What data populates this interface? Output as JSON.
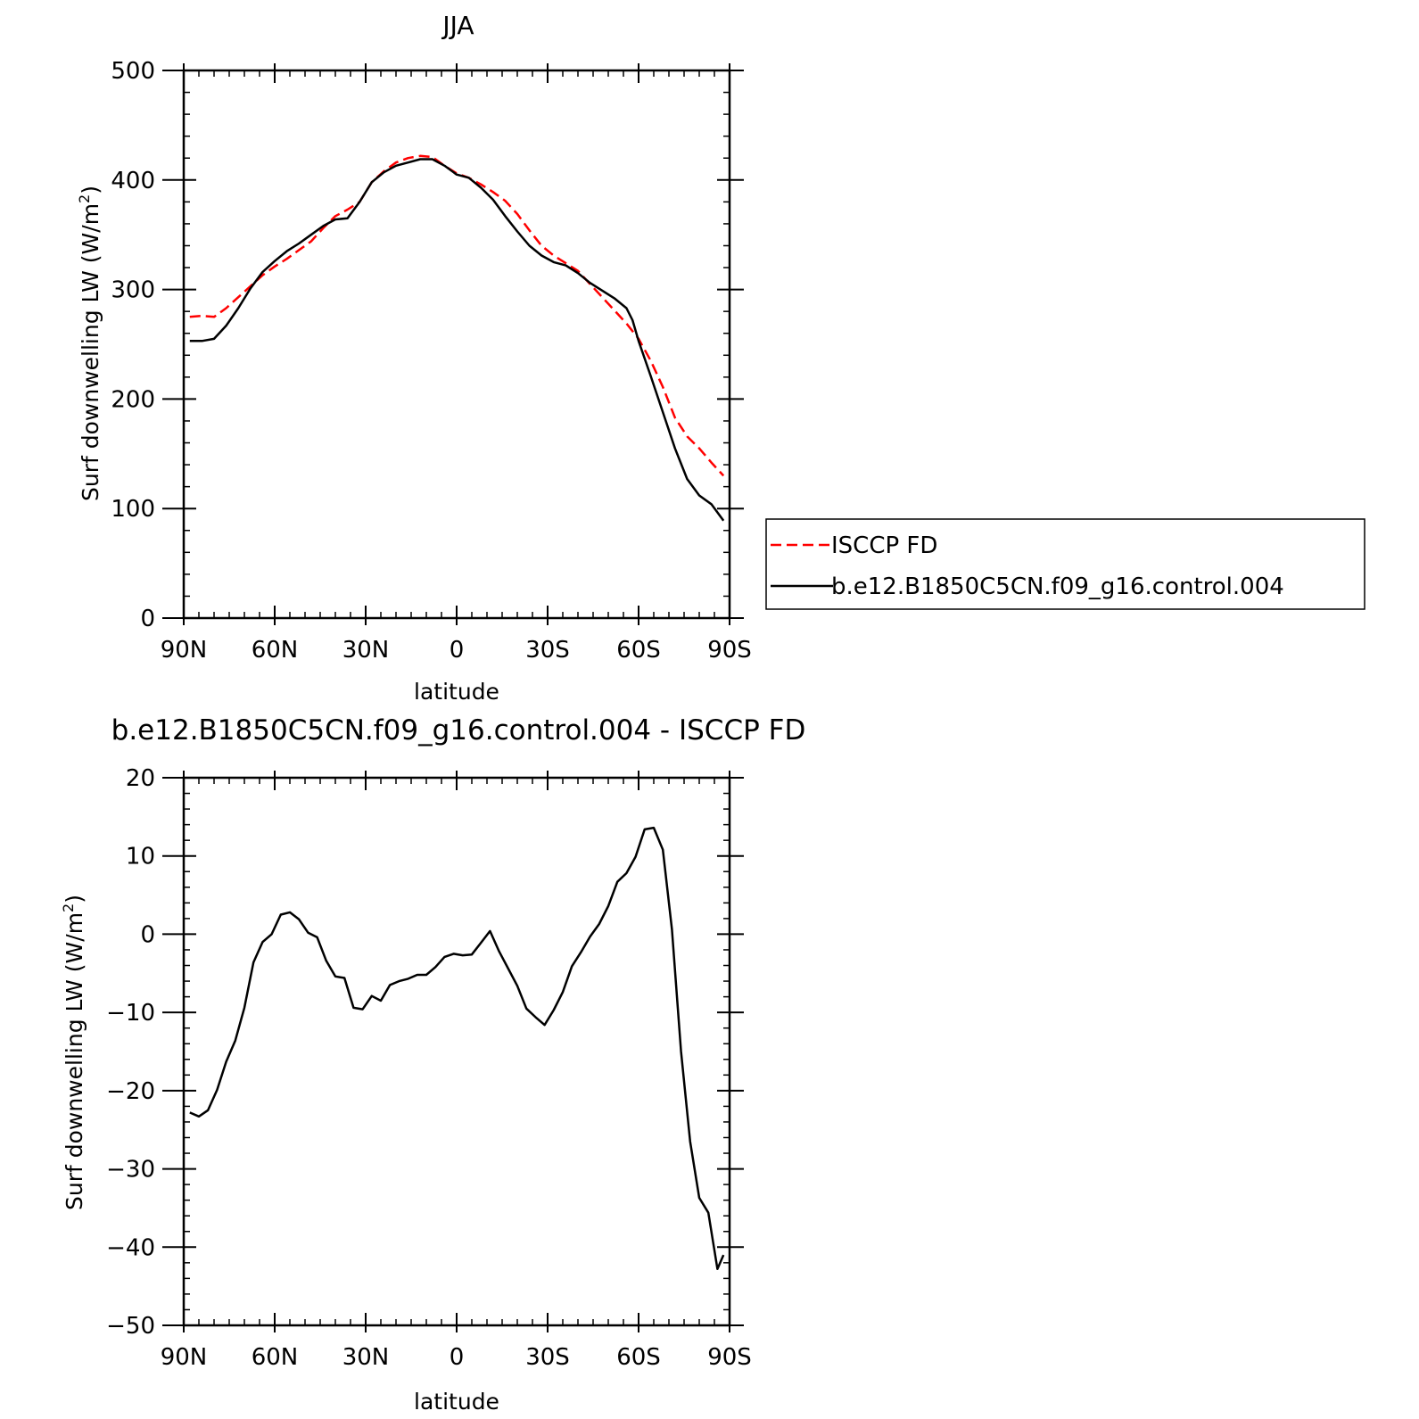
{
  "chart_data": [
    {
      "type": "line",
      "title": "JJA",
      "xlabel": "latitude",
      "ylabel": "Surf downwelling LW (W/m²)",
      "ylabel_main": "Surf downwelling LW (W/m",
      "ylabel_sup": "2",
      "ylabel_close": ")",
      "xlim": [
        90,
        -90
      ],
      "ylim": [
        0,
        500
      ],
      "x_ticks": [
        {
          "value": 90,
          "label": "90N"
        },
        {
          "value": 60,
          "label": "60N"
        },
        {
          "value": 30,
          "label": "30N"
        },
        {
          "value": 0,
          "label": "0"
        },
        {
          "value": -30,
          "label": "30S"
        },
        {
          "value": -60,
          "label": "60S"
        },
        {
          "value": -90,
          "label": "90S"
        }
      ],
      "y_ticks": [
        {
          "value": 0,
          "label": "0"
        },
        {
          "value": 100,
          "label": "100"
        },
        {
          "value": 200,
          "label": "200"
        },
        {
          "value": 300,
          "label": "300"
        },
        {
          "value": 400,
          "label": "400"
        },
        {
          "value": 500,
          "label": "500"
        }
      ],
      "legend_position": "right",
      "series": [
        {
          "name": "ISCCP FD",
          "color": "#ff0000",
          "dash": true,
          "x": [
            88,
            84,
            80,
            76,
            72,
            68,
            64,
            60,
            56,
            52,
            48,
            44,
            40,
            36,
            32,
            28,
            24,
            20,
            16,
            12,
            8,
            4,
            0,
            -4,
            -8,
            -12,
            -16,
            -20,
            -24,
            -28,
            -32,
            -36,
            -40,
            -44,
            -48,
            -52,
            -56,
            -60,
            -64,
            -68,
            -72,
            -76,
            -80,
            -84,
            -88
          ],
          "y": [
            275,
            276,
            275,
            283,
            293,
            303,
            313,
            321,
            328,
            336,
            344,
            356,
            367,
            373,
            380,
            398,
            408,
            416,
            420,
            422,
            421,
            413,
            406,
            402,
            396,
            389,
            381,
            369,
            354,
            340,
            331,
            324,
            317,
            305,
            293,
            281,
            269,
            255,
            235,
            211,
            183,
            166,
            155,
            142,
            130
          ]
        },
        {
          "name": "b.e12.B1850C5CN.f09_g16.control.004",
          "color": "#000000",
          "dash": false,
          "x": [
            88,
            84,
            80,
            76,
            72,
            68,
            64,
            60,
            56,
            52,
            48,
            44,
            40,
            36,
            32,
            28,
            24,
            20,
            16,
            12,
            8,
            4,
            0,
            -4,
            -8,
            -12,
            -16,
            -20,
            -24,
            -28,
            -32,
            -36,
            -40,
            -44,
            -48,
            -52,
            -56,
            -58,
            -60,
            -64,
            -68,
            -72,
            -76,
            -80,
            -84,
            -88
          ],
          "y": [
            253,
            253,
            255,
            267,
            283,
            301,
            316,
            326,
            335,
            342,
            350,
            358,
            364,
            365,
            380,
            398,
            407,
            413,
            416,
            419,
            419,
            413,
            405,
            402,
            393,
            382,
            367,
            353,
            340,
            331,
            325,
            322,
            315,
            306,
            299,
            292,
            283,
            272,
            253,
            221,
            188,
            155,
            127,
            112,
            104,
            89
          ]
        }
      ]
    },
    {
      "type": "line",
      "title": "b.e12.B1850C5CN.f09_g16.control.004 - ISCCP FD",
      "xlabel": "latitude",
      "ylabel": "Surf downwelling LW (W/m²)",
      "ylabel_main": "Surf downwelling LW (W/m",
      "ylabel_sup": "2",
      "ylabel_close": ")",
      "xlim": [
        90,
        -90
      ],
      "ylim": [
        -50,
        20
      ],
      "x_ticks": [
        {
          "value": 90,
          "label": "90N"
        },
        {
          "value": 60,
          "label": "60N"
        },
        {
          "value": 30,
          "label": "30N"
        },
        {
          "value": 0,
          "label": "0"
        },
        {
          "value": -30,
          "label": "30S"
        },
        {
          "value": -60,
          "label": "60S"
        },
        {
          "value": -90,
          "label": "90S"
        }
      ],
      "y_ticks": [
        {
          "value": -50,
          "label": "−50"
        },
        {
          "value": -40,
          "label": "−40"
        },
        {
          "value": -30,
          "label": "−30"
        },
        {
          "value": -20,
          "label": "−20"
        },
        {
          "value": -10,
          "label": "−10"
        },
        {
          "value": 0,
          "label": "0"
        },
        {
          "value": 10,
          "label": "10"
        },
        {
          "value": 20,
          "label": "20"
        }
      ],
      "series": [
        {
          "color": "#000000",
          "dash": false,
          "x": [
            88,
            85,
            82,
            79,
            76,
            73,
            70,
            67,
            64,
            61,
            58,
            55,
            52,
            49,
            46,
            43,
            40,
            37,
            34,
            31,
            28,
            25,
            22,
            19,
            16,
            13,
            10,
            7,
            4,
            1,
            -2,
            -5,
            -8,
            -11,
            -14,
            -17,
            -20,
            -23,
            -26,
            -29,
            -32,
            -35,
            -38,
            -41,
            -44,
            -47,
            -50,
            -53,
            -56,
            -59,
            -62,
            -65,
            -68,
            -71,
            -74,
            -77,
            -80,
            -83,
            -86,
            -88
          ],
          "y": [
            -22.8,
            -23.3,
            -22.5,
            -19.9,
            -16.3,
            -13.6,
            -9.4,
            -3.6,
            -1.0,
            0.0,
            2.5,
            2.8,
            1.9,
            0.2,
            -0.4,
            -3.4,
            -5.4,
            -5.6,
            -9.4,
            -9.6,
            -7.9,
            -8.5,
            -6.5,
            -6.0,
            -5.7,
            -5.2,
            -5.2,
            -4.2,
            -2.9,
            -2.5,
            -2.7,
            -2.6,
            -1.1,
            0.4,
            -2.2,
            -4.4,
            -6.6,
            -9.5,
            -10.6,
            -11.6,
            -9.7,
            -7.4,
            -4.1,
            -2.3,
            -0.3,
            1.3,
            3.6,
            6.7,
            7.8,
            9.9,
            13.4,
            13.6,
            10.8,
            0.6,
            -15.0,
            -26.5,
            -33.7,
            -35.6,
            -42.8,
            -41.0
          ]
        }
      ]
    }
  ]
}
